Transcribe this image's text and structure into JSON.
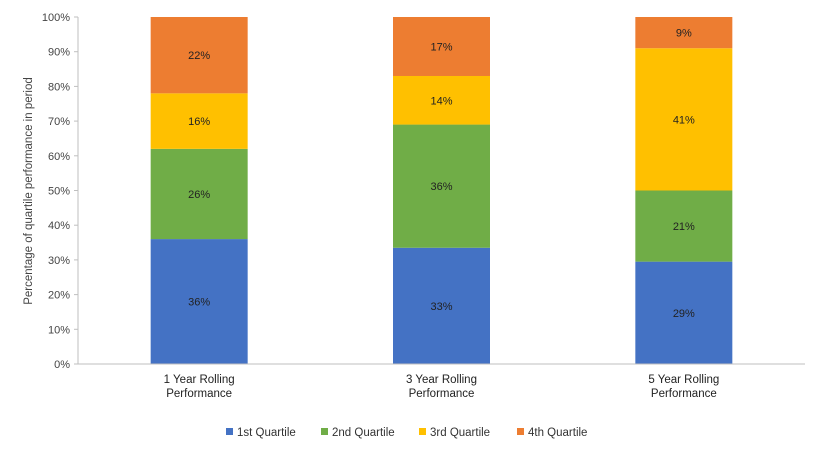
{
  "chart_data": {
    "type": "bar",
    "stacked": true,
    "categories": [
      [
        "1 Year Rolling",
        "Performance"
      ],
      [
        "3 Year Rolling",
        "Performance"
      ],
      [
        "5 Year Rolling",
        "Performance"
      ]
    ],
    "series": [
      {
        "name": "1st Quartile",
        "color": "#4472C4",
        "values": [
          36,
          33.5,
          29.5
        ],
        "labels": [
          "36%",
          "33%",
          "29%"
        ]
      },
      {
        "name": "2nd Quartile",
        "color": "#70AD47",
        "values": [
          26,
          35.5,
          20.5
        ],
        "labels": [
          "26%",
          "36%",
          "21%"
        ]
      },
      {
        "name": "3rd Quartile",
        "color": "#FFC000",
        "values": [
          16,
          14,
          41
        ],
        "labels": [
          "16%",
          "14%",
          "41%"
        ]
      },
      {
        "name": "4th Quartile",
        "color": "#ED7D31",
        "values": [
          22,
          17,
          9
        ],
        "labels": [
          "22%",
          "17%",
          "9%"
        ]
      }
    ],
    "ylabel": "Percentage of quartile performance in period",
    "ylim": [
      0,
      100
    ],
    "yticks": [
      "0%",
      "10%",
      "20%",
      "30%",
      "40%",
      "50%",
      "60%",
      "70%",
      "80%",
      "90%",
      "100%"
    ],
    "grid": false,
    "legend": "bottom"
  }
}
